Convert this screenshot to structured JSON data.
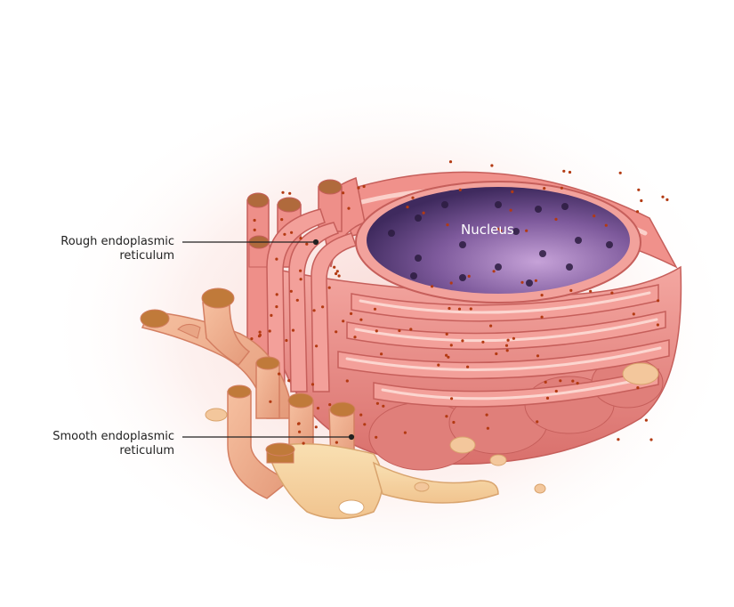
{
  "labels": {
    "rough_er": {
      "line1": "Rough endoplasmic",
      "line2": "reticulum"
    },
    "smooth_er": {
      "line1": "Smooth endoplasmic",
      "line2": "reticulum"
    },
    "nucleus": "Nucleus"
  },
  "colors": {
    "rough_er": "#e88a86",
    "rough_er_dark": "#c85a58",
    "smooth_er": "#f2b08e",
    "smooth_er_light": "#f8d7a6",
    "nucleus": "#6b4b8a",
    "ribosome": "#b33a12",
    "glow": "#f6c9c4"
  }
}
